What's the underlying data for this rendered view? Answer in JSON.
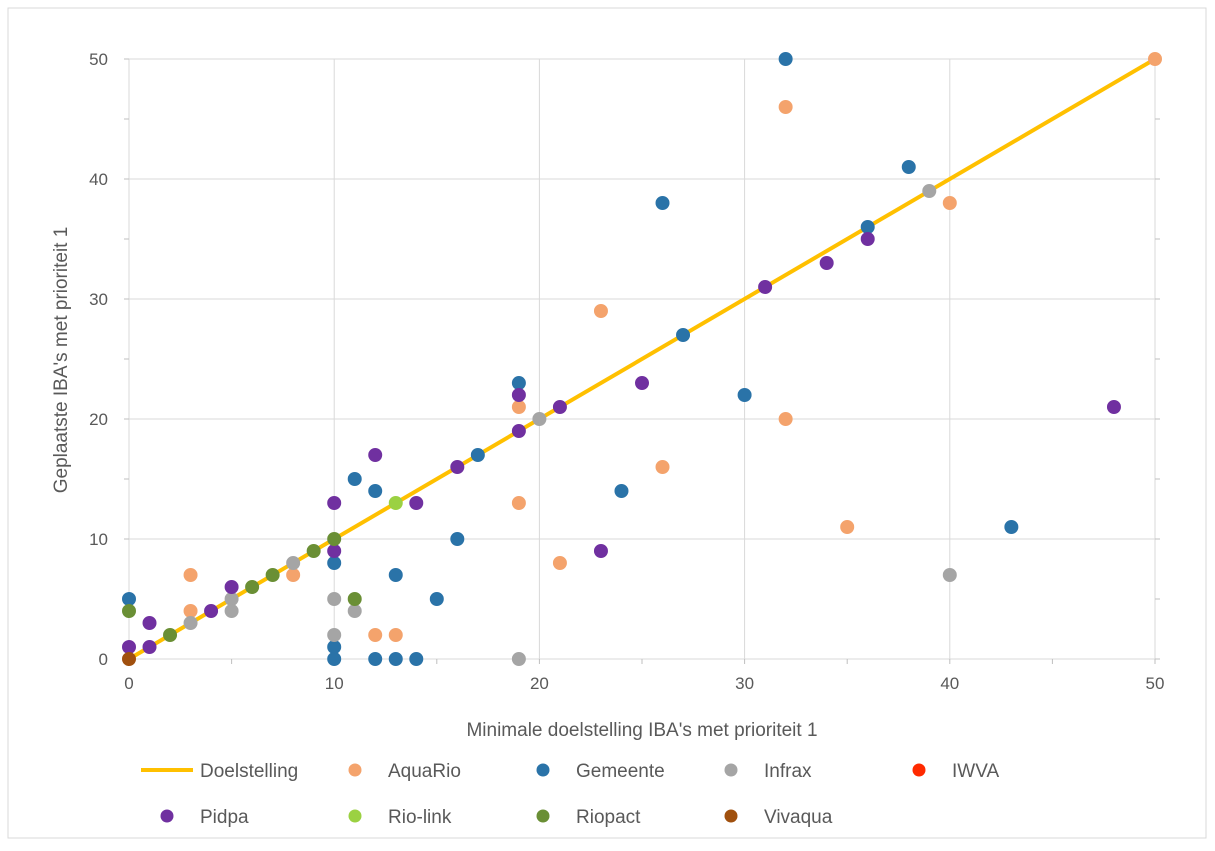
{
  "chart_data": {
    "type": "scatter",
    "xlabel": "Minimale doelstelling IBA's met prioriteit 1",
    "ylabel": "Geplaatste  IBA's met prioriteit 1",
    "xlim": [
      0,
      50
    ],
    "ylim": [
      0,
      50
    ],
    "x_ticks": [
      0,
      10,
      20,
      30,
      40,
      50
    ],
    "y_ticks": [
      0,
      10,
      20,
      30,
      40,
      50
    ],
    "grid": "vertical and horizontal",
    "legend_position": "bottom",
    "series": [
      {
        "name": "Doelstelling",
        "kind": "line",
        "color": "#FFC000",
        "points": [
          [
            0,
            0
          ],
          [
            50,
            50
          ]
        ]
      },
      {
        "name": "AquaRio",
        "kind": "scatter",
        "color": "#F4A36C",
        "points": [
          [
            3,
            7
          ],
          [
            3,
            4
          ],
          [
            8,
            7
          ],
          [
            12,
            2
          ],
          [
            13,
            2
          ],
          [
            19,
            21
          ],
          [
            19,
            13
          ],
          [
            21,
            8
          ],
          [
            23,
            29
          ],
          [
            26,
            16
          ],
          [
            32,
            46
          ],
          [
            32,
            20
          ],
          [
            35,
            11
          ],
          [
            40,
            38
          ],
          [
            50,
            50
          ]
        ]
      },
      {
        "name": "Gemeente",
        "kind": "scatter",
        "color": "#2A73A8",
        "points": [
          [
            0,
            5
          ],
          [
            10,
            8
          ],
          [
            10,
            1
          ],
          [
            10,
            0
          ],
          [
            11,
            15
          ],
          [
            12,
            14
          ],
          [
            12,
            0
          ],
          [
            13,
            7
          ],
          [
            13,
            0
          ],
          [
            14,
            0
          ],
          [
            15,
            5
          ],
          [
            16,
            10
          ],
          [
            17,
            17
          ],
          [
            19,
            23
          ],
          [
            24,
            14
          ],
          [
            26,
            38
          ],
          [
            27,
            27
          ],
          [
            30,
            22
          ],
          [
            32,
            50
          ],
          [
            36,
            36
          ],
          [
            38,
            41
          ],
          [
            43,
            11
          ]
        ]
      },
      {
        "name": "Infrax",
        "kind": "scatter",
        "color": "#A5A5A5",
        "points": [
          [
            3,
            3
          ],
          [
            5,
            5
          ],
          [
            5,
            4
          ],
          [
            8,
            8
          ],
          [
            10,
            5
          ],
          [
            10,
            2
          ],
          [
            11,
            4
          ],
          [
            19,
            0
          ],
          [
            20,
            20
          ],
          [
            39,
            39
          ],
          [
            40,
            7
          ]
        ]
      },
      {
        "name": "IWVA",
        "kind": "scatter",
        "color": "#FF2A00",
        "points": []
      },
      {
        "name": "Pidpa",
        "kind": "scatter",
        "color": "#7030A0",
        "points": [
          [
            0,
            1
          ],
          [
            1,
            3
          ],
          [
            1,
            1
          ],
          [
            4,
            4
          ],
          [
            5,
            6
          ],
          [
            10,
            13
          ],
          [
            10,
            9
          ],
          [
            12,
            17
          ],
          [
            14,
            13
          ],
          [
            16,
            16
          ],
          [
            19,
            22
          ],
          [
            19,
            19
          ],
          [
            21,
            21
          ],
          [
            23,
            9
          ],
          [
            25,
            23
          ],
          [
            31,
            31
          ],
          [
            34,
            33
          ],
          [
            36,
            35
          ],
          [
            48,
            21
          ]
        ]
      },
      {
        "name": "Rio-link",
        "kind": "scatter",
        "color": "#9BD142",
        "points": [
          [
            13,
            13
          ]
        ]
      },
      {
        "name": "Riopact",
        "kind": "scatter",
        "color": "#6A8F35",
        "points": [
          [
            0,
            4
          ],
          [
            2,
            2
          ],
          [
            6,
            6
          ],
          [
            7,
            7
          ],
          [
            9,
            9
          ],
          [
            10,
            10
          ],
          [
            11,
            5
          ]
        ]
      },
      {
        "name": "Vivaqua",
        "kind": "scatter",
        "color": "#A0500E",
        "points": [
          [
            0,
            0
          ]
        ]
      }
    ]
  }
}
